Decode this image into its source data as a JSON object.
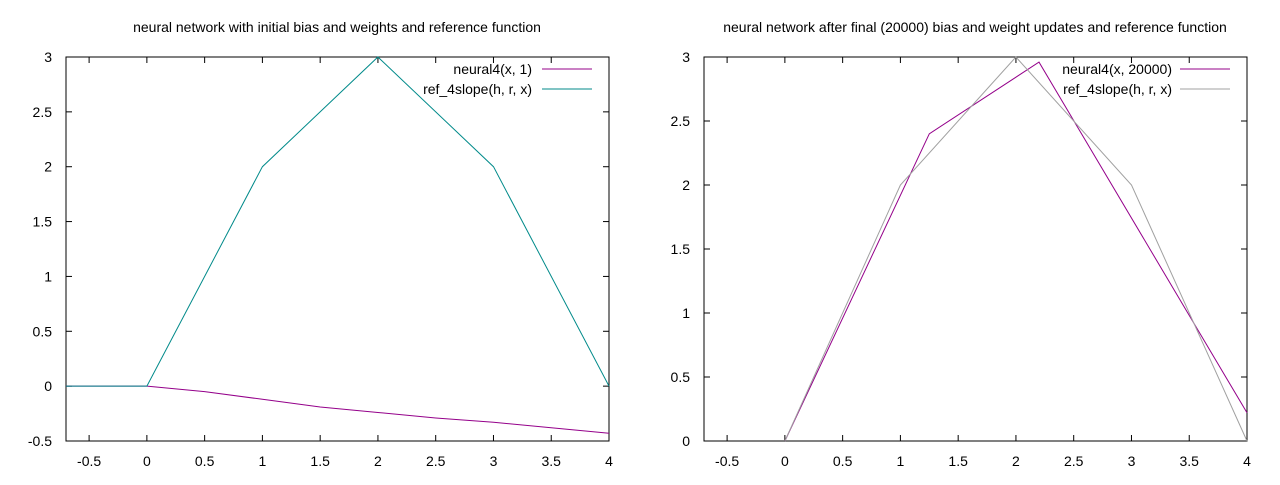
{
  "chart_data": [
    {
      "type": "line",
      "title": "neural network with initial bias and weights and reference function",
      "xlabel": "",
      "ylabel": "",
      "xlim": [
        -0.7,
        4
      ],
      "ylim": [
        -0.5,
        3
      ],
      "xticks": [
        -0.5,
        0,
        0.5,
        1,
        1.5,
        2,
        2.5,
        3,
        3.5,
        4
      ],
      "xtick_labels": [
        "-0.5",
        "0",
        "0.5",
        "1",
        "1.5",
        "2",
        "2.5",
        "3",
        "3.5",
        "4"
      ],
      "yticks": [
        -0.5,
        0,
        0.5,
        1,
        1.5,
        2,
        2.5,
        3
      ],
      "ytick_labels": [
        "-0.5",
        "0",
        "0.5",
        "1",
        "1.5",
        "2",
        "2.5",
        "3"
      ],
      "grid": false,
      "legend_position": "top-right",
      "series": [
        {
          "name": "neural4(x, 1)",
          "color": "#94008a",
          "x": [
            -0.7,
            0,
            0.5,
            1,
            1.5,
            2,
            2.5,
            3,
            3.5,
            4
          ],
          "y": [
            0,
            0,
            -0.05,
            -0.12,
            -0.19,
            -0.24,
            -0.29,
            -0.33,
            -0.38,
            -0.43
          ]
        },
        {
          "name": "ref_4slope(h, r, x)",
          "color": "#008a8a",
          "x": [
            -0.7,
            0,
            1,
            2,
            3,
            4
          ],
          "y": [
            0,
            0,
            2,
            3,
            2,
            0
          ]
        }
      ]
    },
    {
      "type": "line",
      "title": "neural network after final (20000) bias and weight updates and reference function",
      "xlabel": "",
      "ylabel": "",
      "xlim": [
        -0.7,
        4
      ],
      "ylim": [
        0,
        3
      ],
      "xticks": [
        -0.5,
        0,
        0.5,
        1,
        1.5,
        2,
        2.5,
        3,
        3.5,
        4
      ],
      "xtick_labels": [
        "-0.5",
        "0",
        "0.5",
        "1",
        "1.5",
        "2",
        "2.5",
        "3",
        "3.5",
        "4"
      ],
      "yticks": [
        0,
        0.5,
        1,
        1.5,
        2,
        2.5,
        3
      ],
      "ytick_labels": [
        "0",
        "0.5",
        "1",
        "1.5",
        "2",
        "2.5",
        "3"
      ],
      "grid": false,
      "legend_position": "top-right",
      "series": [
        {
          "name": "neural4(x, 20000)",
          "color": "#94008a",
          "x": [
            0,
            1.25,
            2.2,
            4
          ],
          "y": [
            0,
            2.4,
            2.96,
            0.22
          ]
        },
        {
          "name": "ref_4slope(h, r, x)",
          "color": "#a0a0a0",
          "x": [
            0,
            1,
            2,
            3,
            4
          ],
          "y": [
            0,
            2,
            3,
            2,
            0
          ]
        }
      ]
    }
  ]
}
